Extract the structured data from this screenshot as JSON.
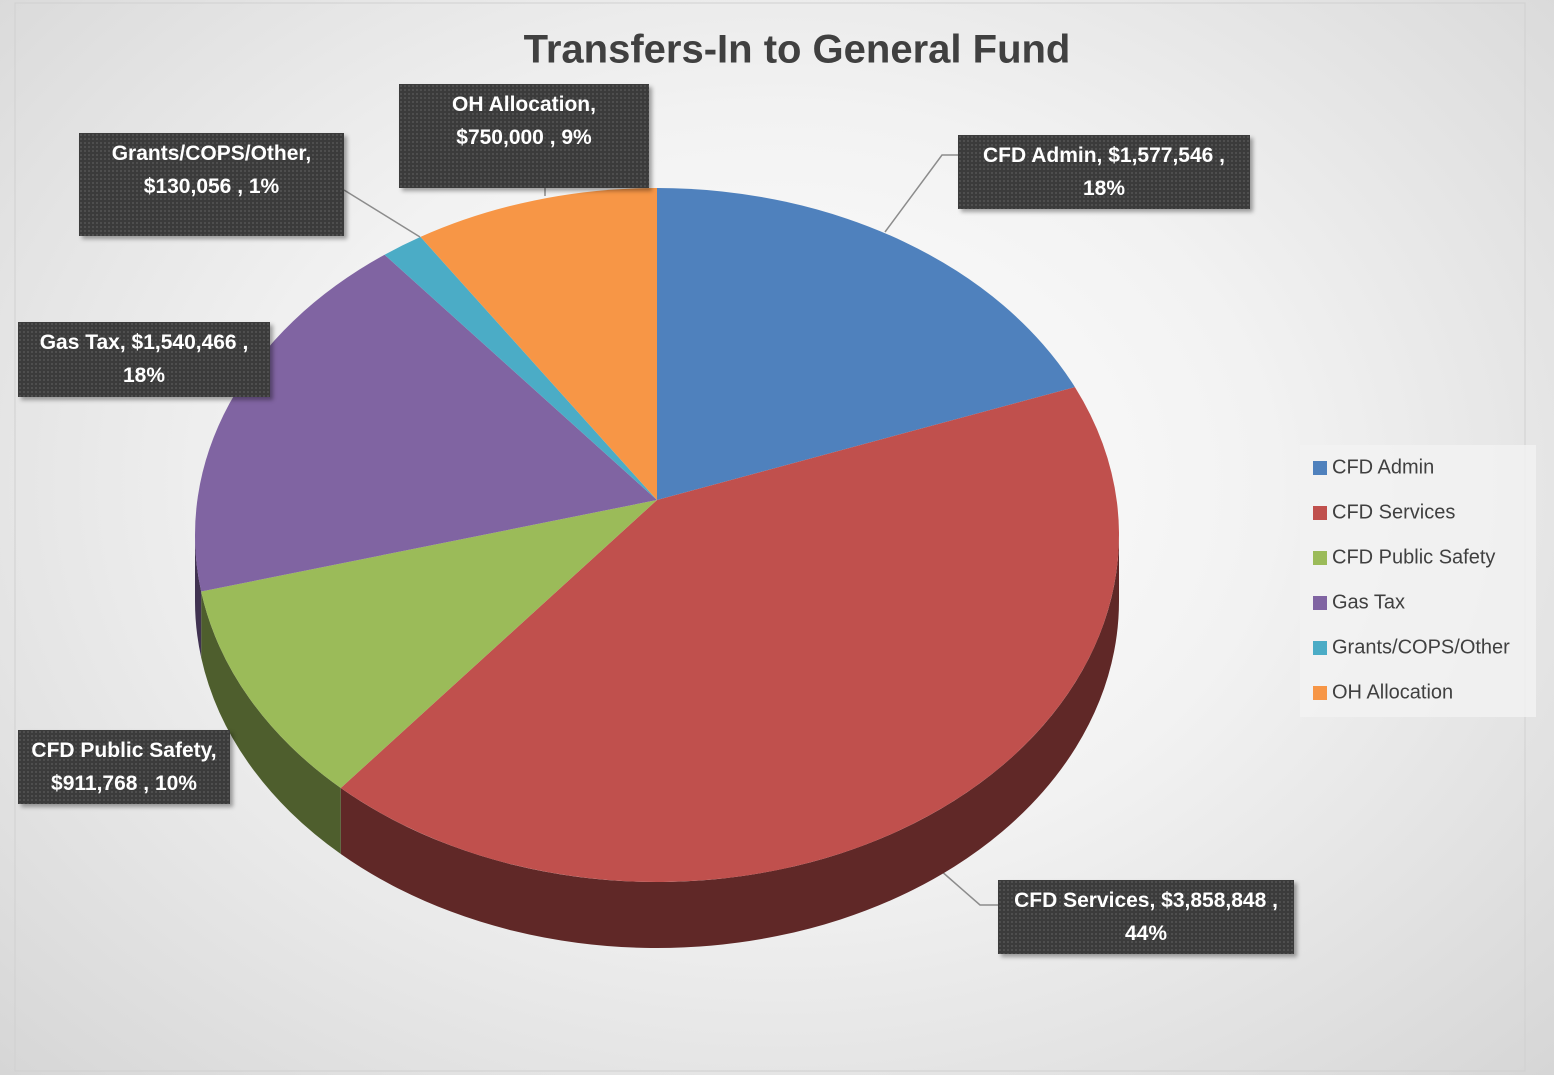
{
  "chart_data": {
    "type": "pie",
    "title": "Transfers-In to General Fund",
    "categories": [
      "CFD Admin",
      "CFD Services",
      "CFD Public Safety",
      "Gas Tax",
      "Grants/COPS/Other",
      "OH Allocation"
    ],
    "values": [
      1577546,
      3858848,
      911768,
      1540466,
      130056,
      750000
    ],
    "value_labels": [
      "CFD Admin,  $1,577,546 , 18%",
      "CFD Services,  $3,858,848 , 44%",
      "CFD Public Safety, $911,768 , 10%",
      "Gas Tax,  $1,540,466 , 18%",
      "Grants/COPS/Other, $130,056 , 1%",
      "OH Allocation, $750,000 , 9%"
    ],
    "colors": [
      "#4f81bd",
      "#c0504d",
      "#9bbb59",
      "#8064a2",
      "#4bacc6",
      "#f79646"
    ],
    "legend": "right"
  }
}
